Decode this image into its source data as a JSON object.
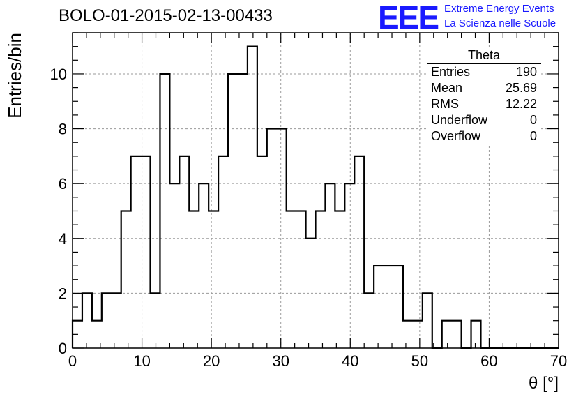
{
  "header": {
    "run_title": "BOLO-01-2015-02-13-00433",
    "logo_text": "EEE",
    "org_line1": "Extreme Energy Events",
    "org_line2": "La Scienza nelle Scuole"
  },
  "stats_box": {
    "title": "Theta",
    "rows": [
      {
        "label": "Entries",
        "value": "190"
      },
      {
        "label": "Mean",
        "value": "25.69"
      },
      {
        "label": "RMS",
        "value": "12.22"
      },
      {
        "label": "Underflow",
        "value": "0"
      },
      {
        "label": "Overflow",
        "value": "0"
      }
    ]
  },
  "chart_data": {
    "type": "histogram",
    "xlabel": "θ [°]",
    "ylabel": "Entries/bin",
    "xlim": [
      0,
      70
    ],
    "ylim": [
      0,
      11.5
    ],
    "grid": true,
    "line_color": "#000000",
    "bin_width": 1.4,
    "bin_start": 0,
    "values": [
      1,
      2,
      1,
      2,
      2,
      5,
      7,
      7,
      2,
      10,
      6,
      7,
      5,
      6,
      5,
      7,
      10,
      10,
      11,
      7,
      8,
      8,
      5,
      5,
      4,
      5,
      6,
      5,
      6,
      7,
      2,
      3,
      3,
      3,
      1,
      1,
      2,
      0,
      1,
      1,
      0,
      1,
      0,
      0,
      0,
      0,
      0,
      0,
      0,
      0
    ],
    "xticks": [
      0,
      10,
      20,
      30,
      40,
      50,
      60,
      70
    ],
    "yticks": [
      0,
      2,
      4,
      6,
      8,
      10
    ]
  }
}
